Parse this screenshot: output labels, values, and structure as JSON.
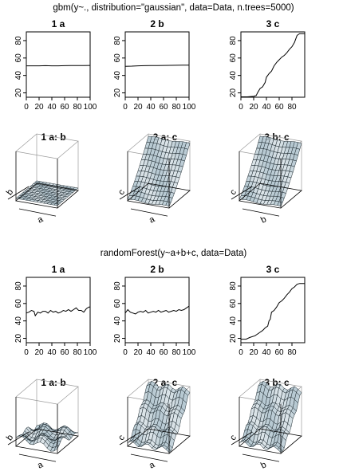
{
  "sections": [
    {
      "heading": "gbm(y~., distribution=\"gaussian\", data=Data, n.trees=5000)",
      "line_plots": [
        {
          "type": "line",
          "title": "1  a",
          "x_ticks": [
            0,
            20,
            40,
            60,
            80,
            100
          ],
          "y_ticks": [
            20,
            40,
            60,
            80
          ],
          "xlim": [
            0,
            100
          ],
          "ylim": [
            15,
            90
          ],
          "x": [
            0,
            10,
            20,
            30,
            40,
            50,
            60,
            70,
            80,
            90,
            100
          ],
          "y": [
            51,
            51,
            51,
            51.2,
            51,
            51,
            51.2,
            51.3,
            51.3,
            51.4,
            51.5
          ]
        },
        {
          "type": "line",
          "title": "2  b",
          "x_ticks": [
            0,
            20,
            40,
            60,
            80,
            100
          ],
          "y_ticks": [
            20,
            40,
            60,
            80
          ],
          "xlim": [
            0,
            100
          ],
          "ylim": [
            15,
            90
          ],
          "x": [
            0,
            10,
            20,
            30,
            40,
            50,
            60,
            70,
            80,
            90,
            100
          ],
          "y": [
            50.5,
            50.7,
            51,
            51.2,
            51.3,
            51.4,
            51.5,
            51.6,
            51.7,
            51.8,
            51.8
          ]
        },
        {
          "type": "line",
          "title": "3  c",
          "x_ticks": [
            0,
            20,
            40,
            60,
            80
          ],
          "y_ticks": [
            20,
            40,
            60,
            80
          ],
          "xlim": [
            0,
            100
          ],
          "ylim": [
            15,
            90
          ],
          "x": [
            0,
            10,
            20,
            24,
            26,
            30,
            34,
            38,
            40,
            44,
            48,
            52,
            56,
            60,
            64,
            68,
            72,
            76,
            80,
            84,
            88,
            92,
            96,
            100
          ],
          "y": [
            15.5,
            15.5,
            16,
            17,
            20,
            25,
            27,
            32,
            38,
            42,
            45,
            51,
            55,
            58,
            61,
            63,
            66,
            70,
            73,
            78,
            86,
            88,
            88,
            88
          ]
        }
      ],
      "surface_plots": [
        {
          "type": "surface",
          "title": "1 a: b",
          "x_axis": "a",
          "y_axis": "b",
          "shape": "flat"
        },
        {
          "type": "surface",
          "title": "2 a: c",
          "x_axis": "a",
          "y_axis": "c",
          "shape": "ramp"
        },
        {
          "type": "surface",
          "title": "3 b: c",
          "x_axis": "b",
          "y_axis": "c",
          "shape": "ramp"
        }
      ]
    },
    {
      "heading": "randomForest(y~a+b+c, data=Data)",
      "line_plots": [
        {
          "type": "line",
          "title": "1  a",
          "x_ticks": [
            0,
            20,
            40,
            60,
            80,
            100
          ],
          "y_ticks": [
            20,
            40,
            60,
            80
          ],
          "xlim": [
            0,
            100
          ],
          "ylim": [
            15,
            90
          ],
          "x": [
            0,
            4,
            8,
            12,
            14,
            18,
            22,
            26,
            30,
            34,
            38,
            42,
            46,
            50,
            54,
            58,
            62,
            66,
            70,
            74,
            78,
            82,
            86,
            90,
            94,
            98,
            100
          ],
          "y": [
            49,
            50,
            52,
            51,
            46,
            50,
            49,
            51,
            51,
            49,
            52,
            50,
            51,
            49,
            50,
            52,
            51,
            53,
            51,
            53,
            55,
            52,
            52,
            50,
            54,
            56,
            56
          ]
        },
        {
          "type": "line",
          "title": "2  b",
          "x_ticks": [
            0,
            20,
            40,
            60,
            80,
            100
          ],
          "y_ticks": [
            20,
            40,
            60,
            80
          ],
          "xlim": [
            0,
            100
          ],
          "ylim": [
            15,
            90
          ],
          "x": [
            0,
            4,
            8,
            12,
            16,
            20,
            24,
            28,
            32,
            36,
            40,
            44,
            48,
            52,
            56,
            60,
            64,
            68,
            72,
            76,
            80,
            84,
            88,
            92,
            96,
            100
          ],
          "y": [
            49,
            53,
            50,
            49,
            48,
            50,
            51,
            50,
            52,
            49,
            50,
            51,
            50,
            52,
            50,
            51,
            52,
            50,
            51,
            52,
            51,
            53,
            52,
            53,
            55,
            57
          ]
        },
        {
          "type": "line",
          "title": "3  c",
          "x_ticks": [
            0,
            20,
            40,
            60,
            80
          ],
          "y_ticks": [
            20,
            40,
            60,
            80
          ],
          "xlim": [
            0,
            100
          ],
          "ylim": [
            15,
            90
          ],
          "x": [
            0,
            8,
            14,
            22,
            26,
            30,
            34,
            38,
            42,
            44,
            46,
            48,
            52,
            56,
            60,
            64,
            68,
            72,
            76,
            80,
            84,
            88,
            92,
            96,
            100
          ],
          "y": [
            19,
            19,
            21,
            23,
            25,
            27,
            29,
            32,
            34,
            40,
            42,
            50,
            52,
            56,
            61,
            63,
            66,
            70,
            73,
            77,
            79,
            82,
            83,
            83,
            83
          ]
        }
      ],
      "surface_plots": [
        {
          "type": "surface",
          "title": "1 a: b",
          "x_axis": "a",
          "y_axis": "b",
          "shape": "bumpy"
        },
        {
          "type": "surface",
          "title": "2 a: c",
          "x_axis": "a",
          "y_axis": "c",
          "shape": "ramp-rough"
        },
        {
          "type": "surface",
          "title": "3 b: c",
          "x_axis": "b",
          "y_axis": "c",
          "shape": "ramp-rough"
        }
      ]
    }
  ],
  "colors": {
    "surface_fill": "#b7c9d2",
    "surface_edge": "#1e2a30",
    "line": "#000000",
    "axis": "#000000",
    "box": "#9a9a9a"
  }
}
